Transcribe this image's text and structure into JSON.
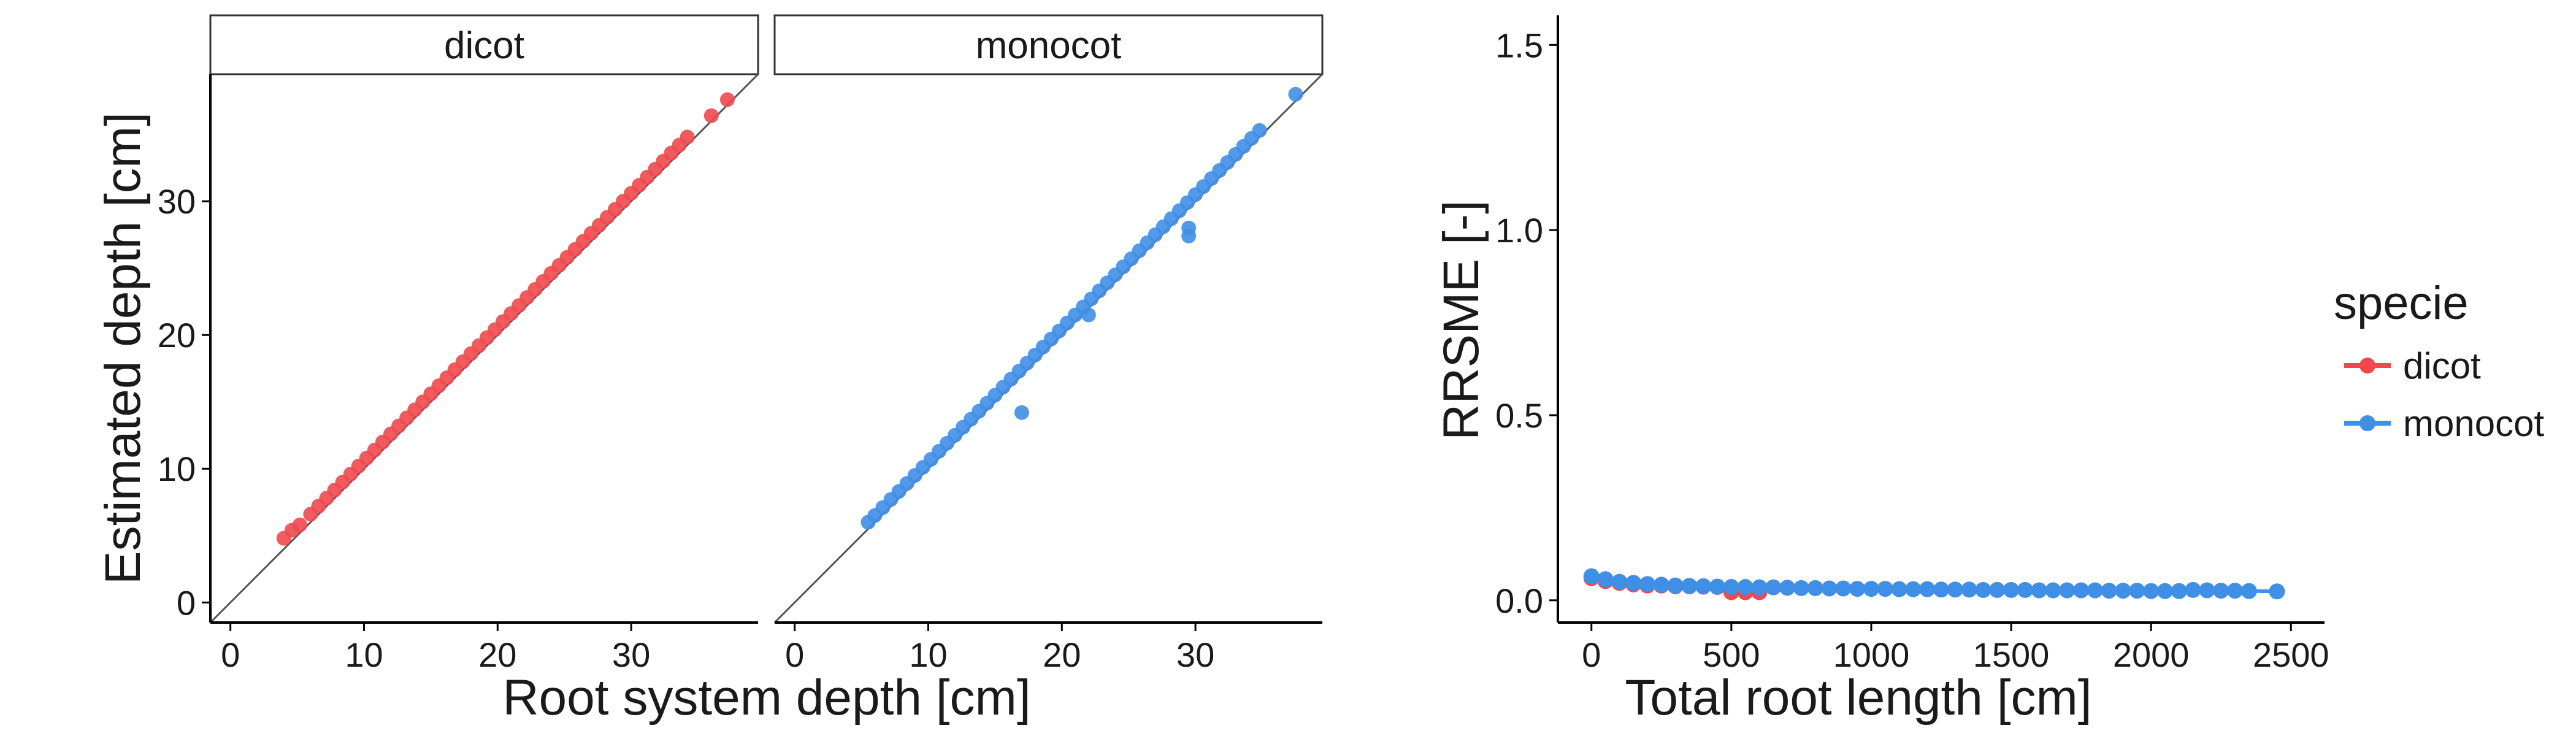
{
  "chart_data": [
    {
      "type": "scatter",
      "facets": [
        "dicot",
        "monocot"
      ],
      "xlabel": "Root system depth [cm]",
      "ylabel": "Estimated depth [cm]",
      "xlim": [
        -1.5,
        39.5
      ],
      "ylim": [
        -1.5,
        39.5
      ],
      "xticks": [
        "0",
        "10",
        "20",
        "30"
      ],
      "yticks": [
        "0",
        "10",
        "20",
        "30"
      ],
      "xtick_values": [
        0,
        10,
        20,
        30
      ],
      "ytick_values": [
        0,
        10,
        20,
        30
      ],
      "reference_line": "y = x",
      "grid": false,
      "series": [
        {
          "name": "dicot",
          "facet": "dicot",
          "color": "#F0484E",
          "x": [
            4,
            4.6,
            5.2,
            6,
            6.6,
            7.2,
            7.8,
            8.4,
            9,
            9.6,
            10.2,
            10.8,
            11.4,
            12,
            12.6,
            13.2,
            13.8,
            14.4,
            15,
            15.6,
            16.2,
            16.8,
            17.4,
            18,
            18.6,
            19.2,
            19.8,
            20.4,
            21,
            21.6,
            22.2,
            22.8,
            23.4,
            24,
            24.6,
            25.2,
            25.8,
            26.4,
            27,
            27.6,
            28.2,
            28.8,
            29.4,
            30,
            30.6,
            31.2,
            31.8,
            32.4,
            33,
            33.6,
            34.2,
            36,
            37.2
          ],
          "y": [
            4.8,
            5.4,
            5.8,
            6.6,
            7.2,
            7.8,
            8.4,
            9,
            9.6,
            10.2,
            10.8,
            11.4,
            12,
            12.6,
            13.2,
            13.8,
            14.4,
            15,
            15.6,
            16.2,
            16.8,
            17.4,
            18,
            18.6,
            19.2,
            19.8,
            20.4,
            21,
            21.6,
            22.2,
            22.8,
            23.4,
            24,
            24.6,
            25.2,
            25.8,
            26.4,
            27,
            27.6,
            28.2,
            28.8,
            29.4,
            30,
            30.6,
            31.2,
            31.8,
            32.4,
            33,
            33.6,
            34.2,
            34.8,
            36.4,
            37.6
          ]
        },
        {
          "name": "monocot",
          "facet": "monocot",
          "color": "#3F8FE6",
          "x": [
            5.5,
            6,
            6.6,
            7.2,
            7.8,
            8.4,
            9,
            9.6,
            10.2,
            10.8,
            11.4,
            12,
            12.6,
            13.2,
            13.8,
            14.4,
            15,
            15.6,
            16.2,
            16.8,
            17.4,
            18,
            18.6,
            19.2,
            19.8,
            20.4,
            21,
            21.6,
            22.2,
            22.8,
            23.4,
            24,
            24.6,
            25.2,
            25.8,
            26.4,
            27,
            27.6,
            28.2,
            28.8,
            29.4,
            30,
            30.6,
            31.2,
            31.8,
            32.4,
            33,
            33.6,
            34.2,
            34.8,
            37.5,
            17,
            22,
            29.5,
            29.5
          ],
          "y": [
            6,
            6.5,
            7.1,
            7.7,
            8.3,
            8.9,
            9.5,
            10.1,
            10.7,
            11.3,
            11.9,
            12.5,
            13.1,
            13.7,
            14.3,
            14.9,
            15.5,
            16.1,
            16.7,
            17.3,
            17.9,
            18.5,
            19.1,
            19.7,
            20.3,
            20.9,
            21.5,
            22.1,
            22.7,
            23.3,
            23.9,
            24.5,
            25.1,
            25.7,
            26.3,
            26.9,
            27.5,
            28.1,
            28.7,
            29.3,
            29.9,
            30.5,
            31.1,
            31.7,
            32.3,
            32.9,
            33.5,
            34.1,
            34.7,
            35.3,
            38,
            14.2,
            21.5,
            27.4,
            28
          ]
        }
      ]
    },
    {
      "type": "line",
      "xlabel": "Total root length [cm]",
      "ylabel": "RRSME [-]",
      "xlim": [
        -120,
        2620
      ],
      "ylim": [
        -0.06,
        1.58
      ],
      "xticks": [
        "0",
        "500",
        "1000",
        "1500",
        "2000",
        "2500"
      ],
      "yticks": [
        "0.0",
        "0.5",
        "1.0",
        "1.5"
      ],
      "xtick_values": [
        0,
        500,
        1000,
        1500,
        2000,
        2500
      ],
      "ytick_values": [
        0,
        0.5,
        1,
        1.5
      ],
      "grid": false,
      "legend": {
        "title": "specie",
        "position": "right",
        "labels": [
          "dicot",
          "monocot"
        ]
      },
      "series": [
        {
          "name": "dicot",
          "color": "#F0484E",
          "x": [
            0,
            50,
            100,
            150,
            200,
            250,
            300,
            350,
            400,
            450,
            500,
            550,
            600
          ],
          "y": [
            0.06,
            0.052,
            0.047,
            0.043,
            0.04,
            0.04,
            0.038,
            0.038,
            0.037,
            0.036,
            0.022,
            0.022,
            0.022
          ]
        },
        {
          "name": "monocot",
          "color": "#3F8FE6",
          "x": [
            0,
            50,
            100,
            150,
            200,
            250,
            300,
            350,
            400,
            450,
            500,
            550,
            600,
            650,
            700,
            750,
            800,
            850,
            900,
            950,
            1000,
            1050,
            1100,
            1150,
            1200,
            1250,
            1300,
            1350,
            1400,
            1450,
            1500,
            1550,
            1600,
            1650,
            1700,
            1750,
            1800,
            1850,
            1900,
            1950,
            2000,
            2050,
            2100,
            2150,
            2200,
            2250,
            2300,
            2350,
            2450
          ],
          "y": [
            0.065,
            0.057,
            0.05,
            0.047,
            0.044,
            0.042,
            0.04,
            0.039,
            0.038,
            0.037,
            0.036,
            0.036,
            0.035,
            0.035,
            0.034,
            0.033,
            0.033,
            0.032,
            0.032,
            0.031,
            0.031,
            0.031,
            0.03,
            0.03,
            0.03,
            0.029,
            0.029,
            0.029,
            0.028,
            0.028,
            0.028,
            0.028,
            0.027,
            0.027,
            0.027,
            0.027,
            0.027,
            0.026,
            0.026,
            0.026,
            0.025,
            0.025,
            0.025,
            0.028,
            0.027,
            0.026,
            0.026,
            0.025,
            0.024
          ]
        }
      ]
    }
  ]
}
